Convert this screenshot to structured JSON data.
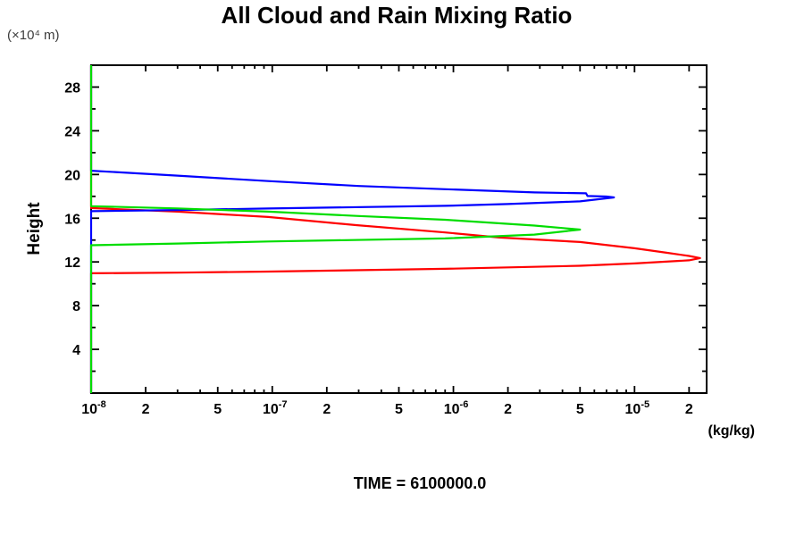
{
  "header": {
    "title": "All Cloud and Rain Mixing Ratio"
  },
  "axis_notes": {
    "y_unit": "(×10⁴ m)",
    "y_label": "Height",
    "x_unit": "(kg/kg)"
  },
  "footer": {
    "time_label": "TIME = 6100000.0"
  },
  "chart_data": {
    "type": "line",
    "title": "All Cloud and Rain Mixing Ratio",
    "xlabel": "(kg/kg)",
    "ylabel": "Height",
    "y_unit_note": "(×10⁴ m)",
    "annotation": "TIME = 6100000.0",
    "x_scale": "log",
    "xlim": [
      1e-08,
      2.5e-05
    ],
    "ylim": [
      0,
      30
    ],
    "grid": false,
    "legend": false,
    "frame": "box",
    "colors": {
      "axis": "#000000",
      "blue_series": "#0000ff",
      "red_series": "#ff0000",
      "green_series": "#00dd00"
    },
    "y_major_ticks": [
      4,
      8,
      12,
      16,
      20,
      24,
      28
    ],
    "y_minor_tick_step": 2,
    "x_labeled_ticks": [
      {
        "value": 1e-08,
        "label": "10",
        "exponent": "-8"
      },
      {
        "value": 2e-08,
        "label": "2"
      },
      {
        "value": 5e-08,
        "label": "5"
      },
      {
        "value": 1e-07,
        "label": "10",
        "exponent": "-7"
      },
      {
        "value": 2e-07,
        "label": "2"
      },
      {
        "value": 5e-07,
        "label": "5"
      },
      {
        "value": 1e-06,
        "label": "10",
        "exponent": "-6"
      },
      {
        "value": 2e-06,
        "label": "2"
      },
      {
        "value": 5e-06,
        "label": "5"
      },
      {
        "value": 1e-05,
        "label": "10",
        "exponent": "-5"
      },
      {
        "value": 2e-05,
        "label": "2"
      }
    ],
    "series": [
      {
        "name": "red-profile",
        "color": "#ff0000",
        "points": [
          [
            1e-08,
            30
          ],
          [
            1e-08,
            16.93
          ],
          [
            3e-08,
            16.6
          ],
          [
            9.5e-08,
            16.11
          ],
          [
            2.9e-07,
            15.37
          ],
          [
            9e-07,
            14.7
          ],
          [
            1.8e-06,
            14.23
          ],
          [
            5e-06,
            13.82
          ],
          [
            1e-05,
            13.25
          ],
          [
            1.5e-05,
            12.84
          ],
          [
            2e-05,
            12.55
          ],
          [
            2.3e-05,
            12.35
          ],
          [
            2e-05,
            12.15
          ],
          [
            1e-05,
            11.86
          ],
          [
            5e-06,
            11.65
          ],
          [
            9e-07,
            11.37
          ],
          [
            9.5e-08,
            11.12
          ],
          [
            3e-08,
            11.02
          ],
          [
            1e-08,
            10.96
          ],
          [
            1e-08,
            0
          ]
        ]
      },
      {
        "name": "blue-profile",
        "color": "#0000ff",
        "points": [
          [
            1e-08,
            30
          ],
          [
            1e-08,
            20.35
          ],
          [
            3e-08,
            19.9
          ],
          [
            9.5e-08,
            19.4
          ],
          [
            3e-07,
            18.95
          ],
          [
            9e-07,
            18.65
          ],
          [
            2.8e-06,
            18.36
          ],
          [
            5.4e-06,
            18.28
          ],
          [
            5.5e-06,
            18.03
          ],
          [
            7e-06,
            17.98
          ],
          [
            7.7e-06,
            17.9
          ],
          [
            5e-06,
            17.54
          ],
          [
            2e-06,
            17.3
          ],
          [
            9e-07,
            17.13
          ],
          [
            9.5e-08,
            16.89
          ],
          [
            3e-08,
            16.75
          ],
          [
            1e-08,
            16.64
          ],
          [
            1e-08,
            0
          ]
        ]
      },
      {
        "name": "green-profile",
        "color": "#00dd00",
        "points": [
          [
            1e-08,
            30
          ],
          [
            1e-08,
            17.1
          ],
          [
            3e-08,
            16.9
          ],
          [
            9.5e-08,
            16.6
          ],
          [
            3e-07,
            16.2
          ],
          [
            9e-07,
            15.86
          ],
          [
            2.8e-06,
            15.33
          ],
          [
            5e-06,
            14.96
          ],
          [
            2.8e-06,
            14.5
          ],
          [
            9e-07,
            14.15
          ],
          [
            9.5e-08,
            13.87
          ],
          [
            3e-08,
            13.68
          ],
          [
            1e-08,
            13.53
          ],
          [
            1e-08,
            0
          ]
        ]
      }
    ]
  }
}
